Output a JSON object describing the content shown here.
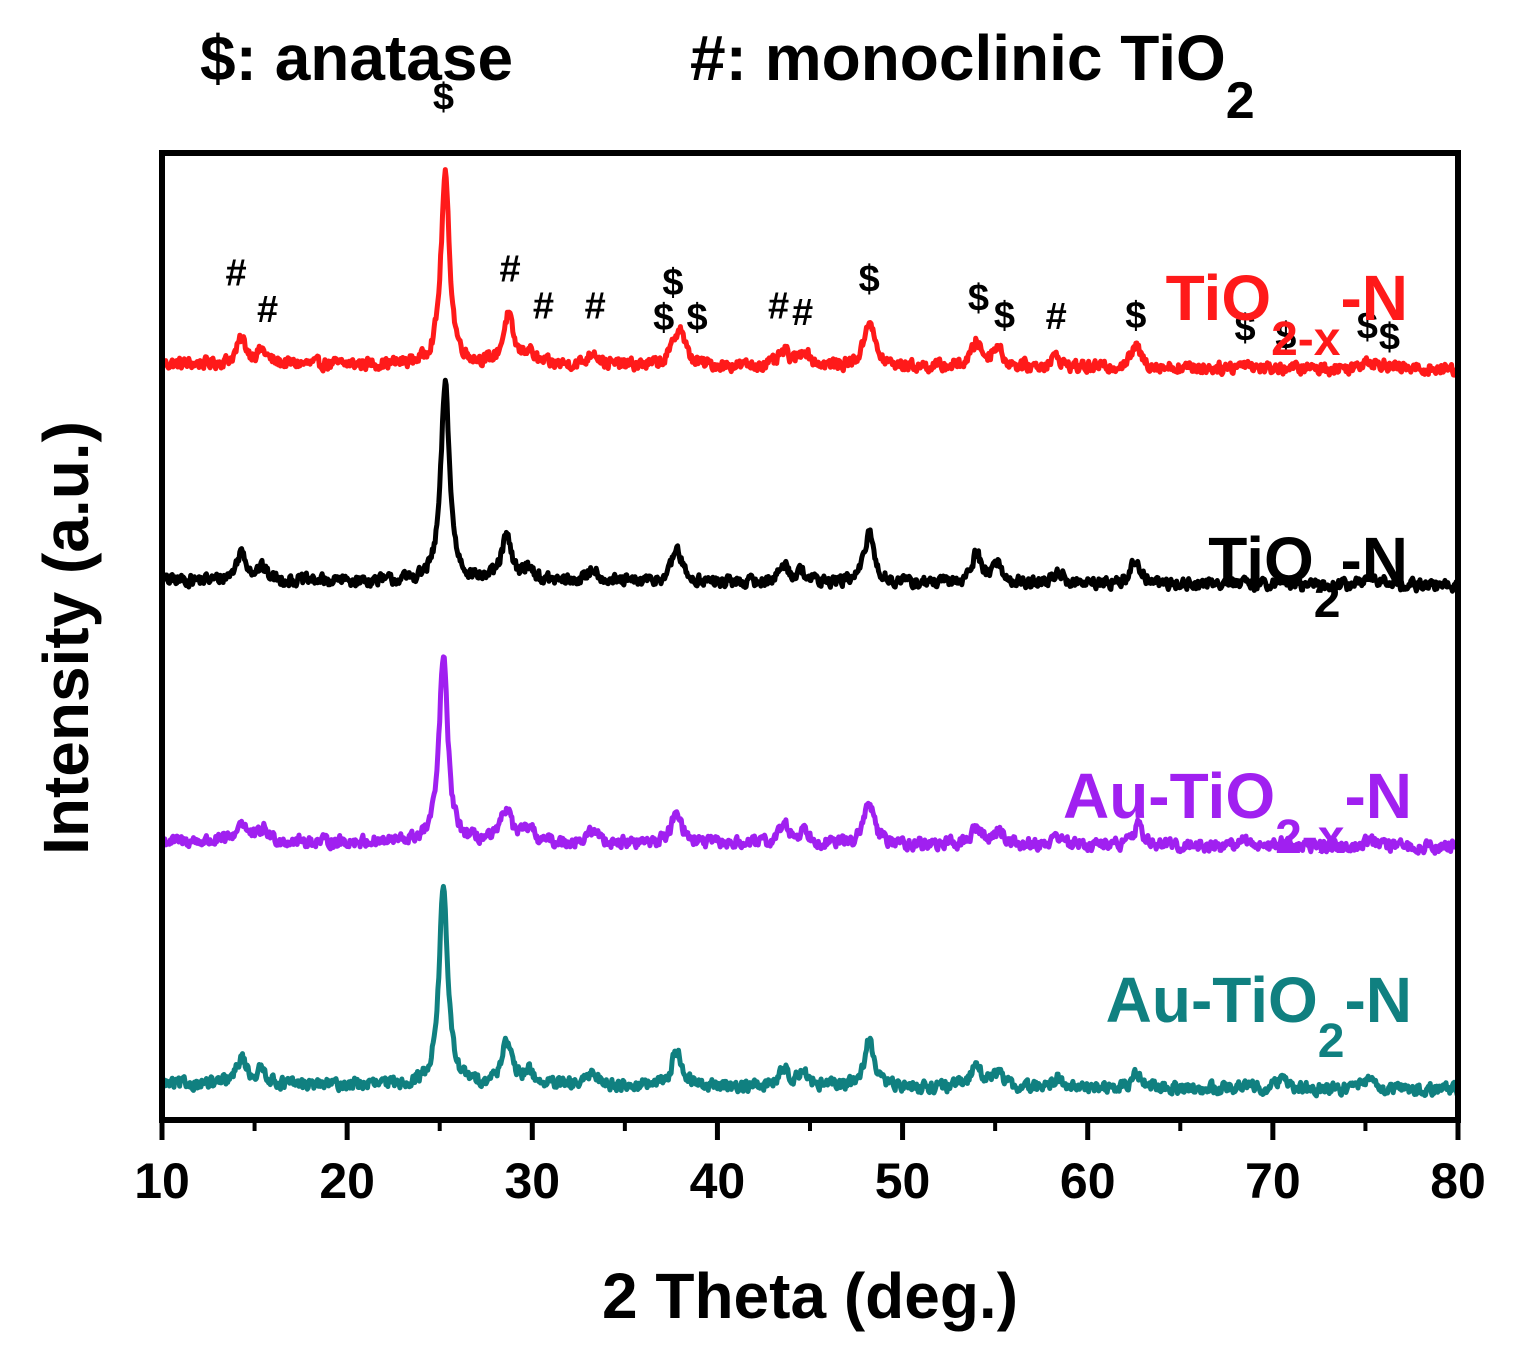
{
  "chart_data": {
    "type": "line",
    "title": {
      "anatase_part": "$: anatase",
      "monoclinic_prefix": "#: monoclinic TiO",
      "monoclinic_sub": "2"
    },
    "xlabel": "2 Theta (deg.)",
    "ylabel": "Intensity (a.u.)",
    "xlim": [
      10,
      80
    ],
    "ylim": [
      0,
      1
    ],
    "xticks": [
      10,
      20,
      30,
      40,
      50,
      60,
      70,
      80
    ],
    "xtick_labels": [
      "10",
      "20",
      "30",
      "40",
      "50",
      "60",
      "70",
      "80"
    ],
    "grid": false,
    "legend": "labels beside each trace, right side",
    "series": [
      {
        "name": "TiO2-x-N",
        "label_main": "TiO",
        "label_sub": "2-x",
        "label_suffix": "-N",
        "color": "#ff1a1a",
        "baseline": 0.782,
        "peaks": [
          [
            14.3,
            0.025
          ],
          [
            15.4,
            0.013
          ],
          [
            25.3,
            0.196
          ],
          [
            28.7,
            0.05
          ],
          [
            29.8,
            0.013
          ],
          [
            33.3,
            0.014
          ],
          [
            37.7,
            0.013
          ],
          [
            38.0,
            0.032
          ],
          [
            43.6,
            0.014
          ],
          [
            44.7,
            0.016
          ],
          [
            48.2,
            0.049
          ],
          [
            54.0,
            0.025
          ],
          [
            55.1,
            0.021
          ],
          [
            58.3,
            0.011
          ],
          [
            62.6,
            0.022
          ],
          [
            68.5,
            0.006
          ],
          [
            75.1,
            0.01
          ],
          [
            76.0,
            0.005
          ]
        ]
      },
      {
        "name": "TiO2-N",
        "label_main": "TiO",
        "label_sub": "2",
        "label_suffix": "-N",
        "color": "#000000",
        "baseline": 0.558,
        "peaks": [
          [
            14.3,
            0.03
          ],
          [
            15.4,
            0.012
          ],
          [
            25.3,
            0.205
          ],
          [
            28.6,
            0.045
          ],
          [
            29.8,
            0.014
          ],
          [
            33.3,
            0.014
          ],
          [
            37.8,
            0.035
          ],
          [
            43.6,
            0.018
          ],
          [
            44.6,
            0.011
          ],
          [
            48.2,
            0.052
          ],
          [
            54.0,
            0.03
          ],
          [
            55.1,
            0.02
          ],
          [
            58.4,
            0.012
          ],
          [
            62.6,
            0.025
          ],
          [
            67.5,
            0.005
          ],
          [
            70.3,
            0.005
          ],
          [
            75.1,
            0.008
          ],
          [
            76.2,
            0.005
          ]
        ]
      },
      {
        "name": "Au-TiO2-x-N",
        "label_main": "Au-TiO",
        "label_sub": "2-x",
        "label_suffix": "-N",
        "color": "#a020f0",
        "baseline": 0.288,
        "peaks": [
          [
            14.3,
            0.02
          ],
          [
            15.5,
            0.012
          ],
          [
            25.2,
            0.193
          ],
          [
            28.6,
            0.035
          ],
          [
            29.8,
            0.014
          ],
          [
            33.3,
            0.013
          ],
          [
            37.8,
            0.035
          ],
          [
            43.6,
            0.02
          ],
          [
            44.7,
            0.014
          ],
          [
            48.2,
            0.044
          ],
          [
            54.0,
            0.017
          ],
          [
            55.2,
            0.015
          ],
          [
            58.4,
            0.01
          ],
          [
            62.7,
            0.02
          ],
          [
            68.5,
            0.006
          ],
          [
            70.5,
            0.005
          ],
          [
            75.2,
            0.008
          ]
        ]
      },
      {
        "name": "Au-TiO2-N",
        "label_main": "Au-TiO",
        "label_sub": "2",
        "label_suffix": "-N",
        "color": "#108080",
        "baseline": 0.037,
        "peaks": [
          [
            14.3,
            0.027
          ],
          [
            15.4,
            0.014
          ],
          [
            25.2,
            0.205
          ],
          [
            28.6,
            0.045
          ],
          [
            29.8,
            0.014
          ],
          [
            33.3,
            0.014
          ],
          [
            37.8,
            0.037
          ],
          [
            43.6,
            0.017
          ],
          [
            44.6,
            0.016
          ],
          [
            48.2,
            0.048
          ],
          [
            54.0,
            0.025
          ],
          [
            55.2,
            0.015
          ],
          [
            58.4,
            0.01
          ],
          [
            62.7,
            0.015
          ],
          [
            68.5,
            0.006
          ],
          [
            70.5,
            0.01
          ],
          [
            75.2,
            0.01
          ]
        ]
      }
    ],
    "annotations": [
      {
        "symbol": "#",
        "x": 14.0,
        "y": 0.863
      },
      {
        "symbol": "#",
        "x": 15.7,
        "y": 0.825
      },
      {
        "symbol": "$",
        "x": 25.2,
        "y": 1.045
      },
      {
        "symbol": "#",
        "x": 28.8,
        "y": 0.867
      },
      {
        "symbol": "#",
        "x": 30.6,
        "y": 0.829
      },
      {
        "symbol": "#",
        "x": 33.4,
        "y": 0.829
      },
      {
        "symbol": "$",
        "x": 37.1,
        "y": 0.817
      },
      {
        "symbol": "$",
        "x": 37.6,
        "y": 0.853
      },
      {
        "symbol": "$",
        "x": 38.9,
        "y": 0.817
      },
      {
        "symbol": "#",
        "x": 43.3,
        "y": 0.829
      },
      {
        "symbol": "#",
        "x": 44.6,
        "y": 0.822
      },
      {
        "symbol": "$",
        "x": 48.2,
        "y": 0.857
      },
      {
        "symbol": "$",
        "x": 54.1,
        "y": 0.837
      },
      {
        "symbol": "$",
        "x": 55.5,
        "y": 0.819
      },
      {
        "symbol": "#",
        "x": 58.3,
        "y": 0.818
      },
      {
        "symbol": "$",
        "x": 62.6,
        "y": 0.819
      },
      {
        "symbol": "$",
        "x": 68.5,
        "y": 0.806
      },
      {
        "symbol": "$",
        "x": 70.7,
        "y": 0.798
      },
      {
        "symbol": "$",
        "x": 75.1,
        "y": 0.808
      },
      {
        "symbol": "$",
        "x": 76.3,
        "y": 0.797
      }
    ]
  }
}
